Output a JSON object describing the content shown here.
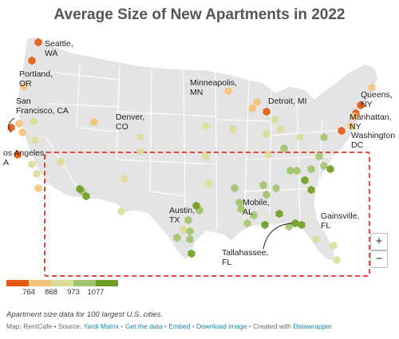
{
  "title": "Average Size of New Apartments in 2022",
  "colors": {
    "land": "#e4e4e4",
    "border": "#ffffff",
    "highlight_box": "#e8453c",
    "bins": [
      "#e55a12",
      "#f6c378",
      "#dddd9a",
      "#a3c46e",
      "#6f9e22"
    ]
  },
  "legend": {
    "ticks": [
      "764",
      "868",
      "973",
      "1077"
    ]
  },
  "labels": {
    "seattle": [
      "Seattle,",
      "WA"
    ],
    "portland": [
      "Portland,",
      "OR"
    ],
    "sanfrancisco": [
      "San",
      "Francisco, CA"
    ],
    "losangeles": [
      "os Angeles,",
      "A"
    ],
    "denver": [
      "Denver,",
      "CO"
    ],
    "minneapolis": [
      "Minneapolis,",
      "MN"
    ],
    "detroit": [
      "Detroit, MI"
    ],
    "queens": [
      "Queens,",
      "NY"
    ],
    "manhattan": [
      "Manhattan,",
      "NY"
    ],
    "washington": [
      "Washington",
      "DC"
    ],
    "austin": [
      "Austin,",
      "TX"
    ],
    "mobile": [
      "Mobile,",
      "AL"
    ],
    "gainsville": [
      "Gainsville,",
      "FL"
    ],
    "tallahassee": [
      "Tallahassee,",
      "FL"
    ]
  },
  "cities": [
    {
      "bin": 0,
      "key": "seattle"
    },
    {
      "bin": 0,
      "key": "tacoma"
    },
    {
      "bin": 0,
      "key": "sanfrancisco"
    },
    {
      "bin": 0,
      "key": "losangeles"
    },
    {
      "bin": 0,
      "key": "detroit"
    },
    {
      "bin": 0,
      "key": "manhattan"
    },
    {
      "bin": 0,
      "key": "washington"
    },
    {
      "bin": 0,
      "key": "queens"
    },
    {
      "bin": 1,
      "key": "portland"
    },
    {
      "bin": 1,
      "key": "oakland"
    },
    {
      "bin": 1,
      "key": "sanjose"
    },
    {
      "bin": 1,
      "key": "denver"
    },
    {
      "bin": 1,
      "key": "minneapolis"
    },
    {
      "bin": 1,
      "key": "chicago"
    },
    {
      "bin": 1,
      "key": "newark"
    },
    {
      "bin": 1,
      "key": "boston"
    },
    {
      "bin": 1,
      "key": "milwaukee"
    },
    {
      "bin": 1,
      "key": "philadelphia"
    },
    {
      "bin": 1,
      "key": "sandiego"
    },
    {
      "bin": 2,
      "key": "sacramento"
    },
    {
      "bin": 2,
      "key": "fresno"
    },
    {
      "bin": 2,
      "key": "coloradosprings"
    },
    {
      "bin": 2,
      "key": "omaha"
    },
    {
      "bin": 2,
      "key": "stlouis"
    },
    {
      "bin": 2,
      "key": "kansascity"
    },
    {
      "bin": 2,
      "key": "indianapolis"
    },
    {
      "bin": 2,
      "key": "columbus"
    },
    {
      "bin": 2,
      "key": "pittsburgh"
    },
    {
      "bin": 2,
      "key": "albuquerque"
    },
    {
      "bin": 2,
      "key": "tucson"
    },
    {
      "bin": 2,
      "key": "elpaso"
    },
    {
      "bin": 2,
      "key": "lasvegas"
    },
    {
      "bin": 2,
      "key": "bakersfield"
    },
    {
      "bin": 2,
      "key": "wichita"
    },
    {
      "bin": 2,
      "key": "oklahomacity"
    },
    {
      "bin": 2,
      "key": "louisville"
    },
    {
      "bin": 2,
      "key": "cincinnati"
    },
    {
      "bin": 2,
      "key": "tampa"
    },
    {
      "bin": 2,
      "key": "orlando"
    },
    {
      "bin": 2,
      "key": "miami"
    },
    {
      "bin": 2,
      "key": "anaheim"
    },
    {
      "bin": 2,
      "key": "corpuschristi"
    },
    {
      "bin": 3,
      "key": "phoenix"
    },
    {
      "bin": 3,
      "key": "dallas"
    },
    {
      "bin": 3,
      "key": "fortworth"
    },
    {
      "bin": 3,
      "key": "sanantonio"
    },
    {
      "bin": 3,
      "key": "tulsa"
    },
    {
      "bin": 3,
      "key": "memphis"
    },
    {
      "bin": 3,
      "key": "nashville"
    },
    {
      "bin": 3,
      "key": "atlanta"
    },
    {
      "bin": 3,
      "key": "charlotte"
    },
    {
      "bin": 3,
      "key": "raleigh"
    },
    {
      "bin": 3,
      "key": "richmond"
    },
    {
      "bin": 3,
      "key": "norfolk"
    },
    {
      "bin": 3,
      "key": "birmingham"
    },
    {
      "bin": 3,
      "key": "jackson"
    },
    {
      "bin": 3,
      "key": "batonrouge"
    },
    {
      "bin": 3,
      "key": "neworleans"
    },
    {
      "bin": 3,
      "key": "jacksonville"
    },
    {
      "bin": 3,
      "key": "knoxville"
    },
    {
      "bin": 3,
      "key": "greensboro"
    },
    {
      "bin": 3,
      "key": "lexington"
    },
    {
      "bin": 3,
      "key": "littlerock"
    },
    {
      "bin": 3,
      "key": "laredo"
    },
    {
      "bin": 4,
      "key": "austin"
    },
    {
      "bin": 4,
      "key": "houston"
    },
    {
      "bin": 4,
      "key": "mobile"
    },
    {
      "bin": 4,
      "key": "tallahassee"
    },
    {
      "bin": 4,
      "key": "gainsville"
    },
    {
      "bin": 4,
      "key": "henderson"
    },
    {
      "bin": 4,
      "key": "mesa"
    },
    {
      "bin": 4,
      "key": "durham"
    },
    {
      "bin": 4,
      "key": "columbia"
    },
    {
      "bin": 4,
      "key": "savannah"
    },
    {
      "bin": 4,
      "key": "montgomery"
    }
  ],
  "footer": {
    "note": "Apartment size data for 100 largest U.S. cities.",
    "map_prefix": "Map: RentCafe • Source:",
    "source": "Yardi Matrix",
    "get_data": "Get the data",
    "embed": "Embed",
    "download": "Download image",
    "created_with": "Created with",
    "tool": "Datawrapper",
    "bullet": "•"
  },
  "zoom": {
    "in": "+",
    "out": "−"
  }
}
